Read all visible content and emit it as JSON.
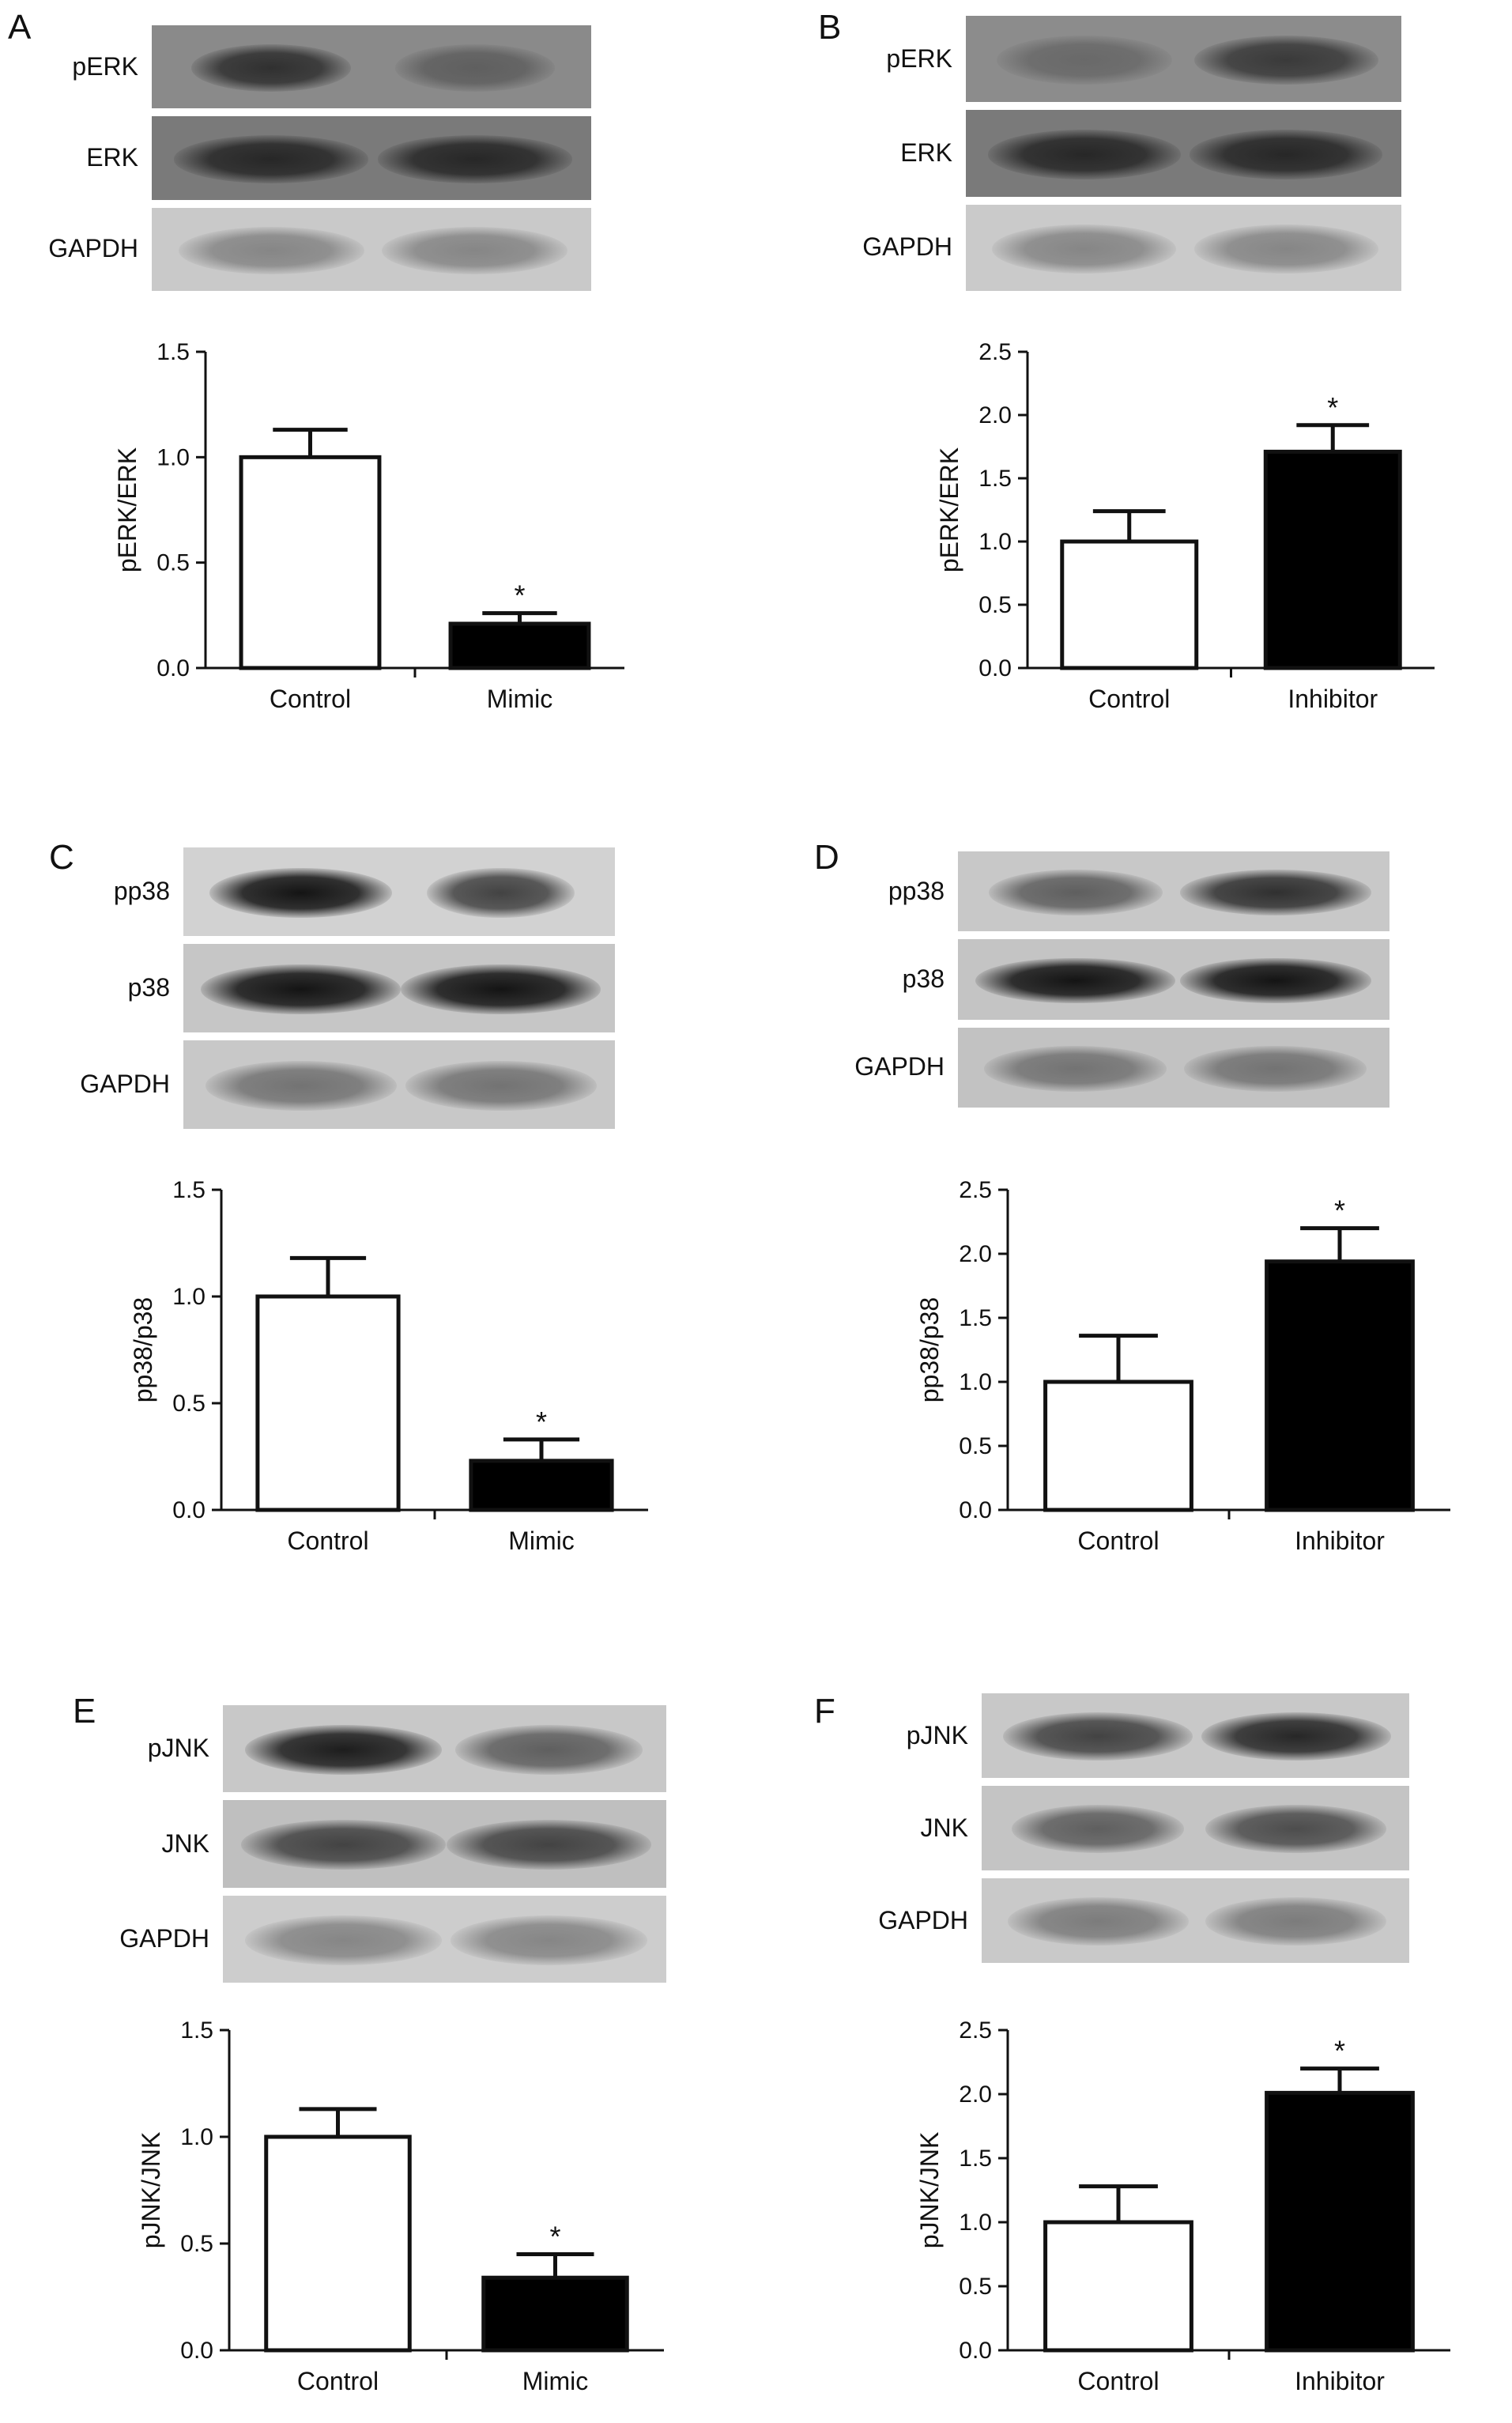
{
  "panels": [
    {
      "letter": "A",
      "blots": [
        {
          "label": "pERK",
          "bg": "#8a8a8a",
          "bands": [
            {
              "dark": 0.8,
              "w": 0.36
            },
            {
              "dark": 0.55,
              "w": 0.36
            }
          ]
        },
        {
          "label": "ERK",
          "bg": "#7a7a7a",
          "bands": [
            {
              "dark": 0.85,
              "w": 0.44
            },
            {
              "dark": 0.85,
              "w": 0.44
            }
          ]
        },
        {
          "label": "GAPDH",
          "bg": "#c9c9c9",
          "bands": [
            {
              "dark": 0.35,
              "w": 0.42
            },
            {
              "dark": 0.35,
              "w": 0.42
            }
          ]
        }
      ]
    },
    {
      "letter": "B",
      "blots": [
        {
          "label": "pERK",
          "bg": "#8c8c8c",
          "bands": [
            {
              "dark": 0.5,
              "w": 0.4
            },
            {
              "dark": 0.75,
              "w": 0.42
            }
          ]
        },
        {
          "label": "ERK",
          "bg": "#7a7a7a",
          "bands": [
            {
              "dark": 0.85,
              "w": 0.44
            },
            {
              "dark": 0.85,
              "w": 0.44
            }
          ]
        },
        {
          "label": "GAPDH",
          "bg": "#cacaca",
          "bands": [
            {
              "dark": 0.35,
              "w": 0.42
            },
            {
              "dark": 0.35,
              "w": 0.42
            }
          ]
        }
      ]
    },
    {
      "letter": "C",
      "blots": [
        {
          "label": "pp38",
          "bg": "#d2d2d2",
          "bands": [
            {
              "dark": 0.95,
              "w": 0.42
            },
            {
              "dark": 0.7,
              "w": 0.34
            }
          ]
        },
        {
          "label": "p38",
          "bg": "#c6c6c6",
          "bands": [
            {
              "dark": 0.95,
              "w": 0.46
            },
            {
              "dark": 0.95,
              "w": 0.46
            }
          ]
        },
        {
          "label": "GAPDH",
          "bg": "#c8c8c8",
          "bands": [
            {
              "dark": 0.45,
              "w": 0.44
            },
            {
              "dark": 0.45,
              "w": 0.44
            }
          ]
        }
      ]
    },
    {
      "letter": "D",
      "blots": [
        {
          "label": "pp38",
          "bg": "#c8c8c8",
          "bands": [
            {
              "dark": 0.55,
              "w": 0.4
            },
            {
              "dark": 0.8,
              "w": 0.44
            }
          ]
        },
        {
          "label": "p38",
          "bg": "#c4c4c4",
          "bands": [
            {
              "dark": 0.95,
              "w": 0.46
            },
            {
              "dark": 0.95,
              "w": 0.44
            }
          ]
        },
        {
          "label": "GAPDH",
          "bg": "#c2c2c2",
          "bands": [
            {
              "dark": 0.45,
              "w": 0.42
            },
            {
              "dark": 0.45,
              "w": 0.42
            }
          ]
        }
      ]
    },
    {
      "letter": "E",
      "blots": [
        {
          "label": "pJNK",
          "bg": "#c8c8c8",
          "bands": [
            {
              "dark": 0.9,
              "w": 0.44
            },
            {
              "dark": 0.55,
              "w": 0.42
            }
          ]
        },
        {
          "label": "JNK",
          "bg": "#bfbfbf",
          "bands": [
            {
              "dark": 0.7,
              "w": 0.46
            },
            {
              "dark": 0.7,
              "w": 0.46
            }
          ]
        },
        {
          "label": "GAPDH",
          "bg": "#cdcdcd",
          "bands": [
            {
              "dark": 0.35,
              "w": 0.44
            },
            {
              "dark": 0.35,
              "w": 0.44
            }
          ]
        }
      ]
    },
    {
      "letter": "F",
      "blots": [
        {
          "label": "pJNK",
          "bg": "#c8c8c8",
          "bands": [
            {
              "dark": 0.7,
              "w": 0.44
            },
            {
              "dark": 0.85,
              "w": 0.44
            }
          ]
        },
        {
          "label": "JNK",
          "bg": "#c4c4c4",
          "bands": [
            {
              "dark": 0.55,
              "w": 0.4
            },
            {
              "dark": 0.65,
              "w": 0.42
            }
          ]
        },
        {
          "label": "GAPDH",
          "bg": "#c9c9c9",
          "bands": [
            {
              "dark": 0.4,
              "w": 0.42
            },
            {
              "dark": 0.4,
              "w": 0.42
            }
          ]
        }
      ]
    }
  ],
  "chart_data": [
    {
      "panel": "A",
      "type": "bar",
      "categories": [
        "Control",
        "Mimic"
      ],
      "values": [
        1.0,
        0.21
      ],
      "errors": [
        0.13,
        0.05
      ],
      "significance": [
        "",
        "*"
      ],
      "ylabel": "pERK/ERK",
      "ylim": [
        0,
        1.5
      ],
      "yticks": [
        "0.0",
        "0.5",
        "1.0",
        "1.5"
      ],
      "fill": [
        "#ffffff",
        "#000000"
      ]
    },
    {
      "panel": "B",
      "type": "bar",
      "categories": [
        "Control",
        "Inhibitor"
      ],
      "values": [
        1.0,
        1.71
      ],
      "errors": [
        0.24,
        0.21
      ],
      "significance": [
        "",
        "*"
      ],
      "ylabel": "pERK/ERK",
      "ylim": [
        0,
        2.5
      ],
      "yticks": [
        "0.0",
        "0.5",
        "1.0",
        "1.5",
        "2.0",
        "2.5"
      ],
      "fill": [
        "#ffffff",
        "#000000"
      ]
    },
    {
      "panel": "C",
      "type": "bar",
      "categories": [
        "Control",
        "Mimic"
      ],
      "values": [
        1.0,
        0.23
      ],
      "errors": [
        0.18,
        0.1
      ],
      "significance": [
        "",
        "*"
      ],
      "ylabel": "pp38/p38",
      "ylim": [
        0,
        1.5
      ],
      "yticks": [
        "0.0",
        "0.5",
        "1.0",
        "1.5"
      ],
      "fill": [
        "#ffffff",
        "#000000"
      ]
    },
    {
      "panel": "D",
      "type": "bar",
      "categories": [
        "Control",
        "Inhibitor"
      ],
      "values": [
        1.0,
        1.94
      ],
      "errors": [
        0.36,
        0.26
      ],
      "significance": [
        "",
        "*"
      ],
      "ylabel": "pp38/p38",
      "ylim": [
        0,
        2.5
      ],
      "yticks": [
        "0.0",
        "0.5",
        "1.0",
        "1.5",
        "2.0",
        "2.5"
      ],
      "fill": [
        "#ffffff",
        "#000000"
      ]
    },
    {
      "panel": "E",
      "type": "bar",
      "categories": [
        "Control",
        "Mimic"
      ],
      "values": [
        1.0,
        0.34
      ],
      "errors": [
        0.13,
        0.11
      ],
      "significance": [
        "",
        "*"
      ],
      "ylabel": "pJNK/JNK",
      "ylim": [
        0,
        1.5
      ],
      "yticks": [
        "0.0",
        "0.5",
        "1.0",
        "1.5"
      ],
      "fill": [
        "#ffffff",
        "#000000"
      ]
    },
    {
      "panel": "F",
      "type": "bar",
      "categories": [
        "Control",
        "Inhibitor"
      ],
      "values": [
        1.0,
        2.01
      ],
      "errors": [
        0.28,
        0.19
      ],
      "significance": [
        "",
        "*"
      ],
      "ylabel": "pJNK/JNK",
      "ylim": [
        0,
        2.5
      ],
      "yticks": [
        "0.0",
        "0.5",
        "1.0",
        "1.5",
        "2.0",
        "2.5"
      ],
      "fill": [
        "#ffffff",
        "#000000"
      ]
    }
  ]
}
